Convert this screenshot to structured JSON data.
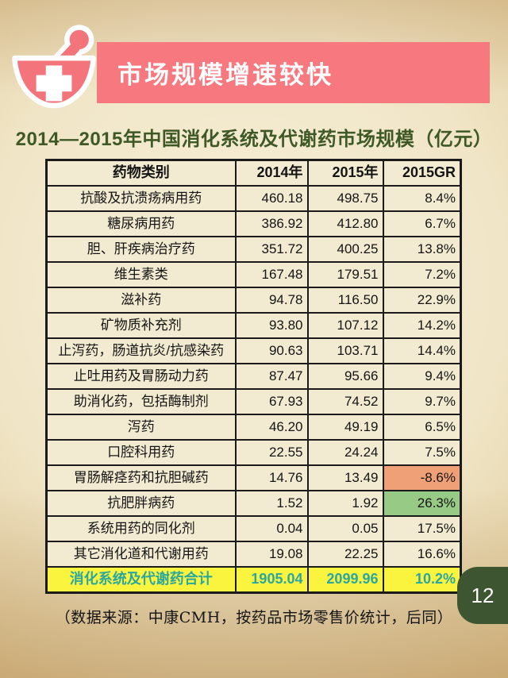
{
  "page": {
    "banner_title": "市场规模增速较快",
    "subtitle": "2014—2015年中国消化系统及代谢药市场规模（亿元）",
    "source_note": "（数据来源：中康CMH，按药品市场零售价统计，后同）",
    "page_number": "12"
  },
  "icons": {
    "header_icon": "mortar-pestle-cross-icon"
  },
  "colors": {
    "banner_pink": "#F7797F",
    "icon_pink": "#F4747C",
    "subtitle_green": "#3E5826",
    "table_cell_cream": "#F3EBD1",
    "table_border": "#1B1B1B",
    "total_row_yellow": "#FAF43F",
    "total_text_teal": "#2BA79F",
    "negative_cell_orange": "#EFA077",
    "positive_cell_green": "#97CA85",
    "page_badge_green": "#3D5631"
  },
  "chart_data": {
    "type": "table",
    "title": "2014—2015年中国消化系统及代谢药市场规模（亿元）",
    "columns": [
      "药物类别",
      "2014年",
      "2015年",
      "2015GR"
    ],
    "rows": [
      [
        "抗酸及抗溃疡病用药",
        "460.18",
        "498.75",
        "8.4%"
      ],
      [
        "糖尿病用药",
        "386.92",
        "412.80",
        "6.7%"
      ],
      [
        "胆、肝疾病治疗药",
        "351.72",
        "400.25",
        "13.8%"
      ],
      [
        "维生素类",
        "167.48",
        "179.51",
        "7.2%"
      ],
      [
        "滋补药",
        "94.78",
        "116.50",
        "22.9%"
      ],
      [
        "矿物质补充剂",
        "93.80",
        "107.12",
        "14.2%"
      ],
      [
        "止泻药，肠道抗炎/抗感染药",
        "90.63",
        "103.71",
        "14.4%"
      ],
      [
        "止吐用药及胃肠动力药",
        "87.47",
        "95.66",
        "9.4%"
      ],
      [
        "助消化药，包括酶制剂",
        "67.93",
        "74.52",
        "9.7%"
      ],
      [
        "泻药",
        "46.20",
        "49.19",
        "6.5%"
      ],
      [
        "口腔科用药",
        "22.55",
        "24.24",
        "7.5%"
      ],
      [
        "胃肠解痉药和抗胆碱药",
        "14.76",
        "13.49",
        "-8.6%"
      ],
      [
        "抗肥胖病药",
        "1.52",
        "1.92",
        "26.3%"
      ],
      [
        "系统用药的同化剂",
        "0.04",
        "0.05",
        "17.5%"
      ],
      [
        "其它消化道和代谢用药",
        "19.08",
        "22.25",
        "16.6%"
      ]
    ],
    "total_row": [
      "消化系统及代谢药合计",
      "1905.04",
      "2099.96",
      "10.2%"
    ],
    "highlight_cells": [
      {
        "row": 11,
        "col": 3,
        "color": "#EFA077",
        "meaning": "negative growth"
      },
      {
        "row": 12,
        "col": 3,
        "color": "#97CA85",
        "meaning": "highest growth"
      }
    ],
    "legend_position": "none",
    "grid": true
  }
}
